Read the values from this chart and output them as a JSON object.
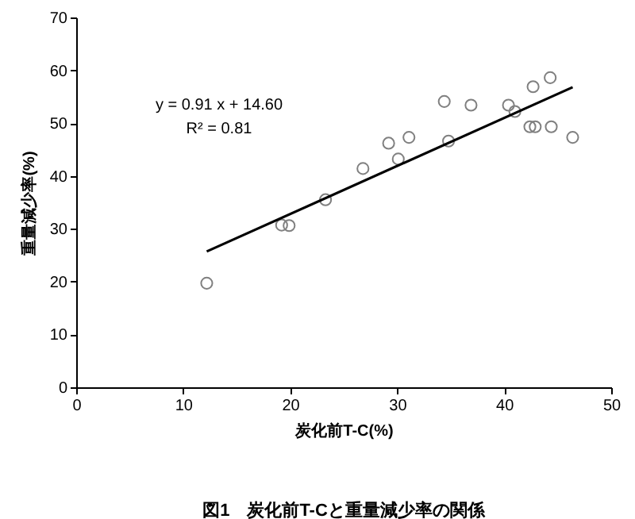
{
  "chart_data": {
    "type": "scatter",
    "title": "図1　炭化前T-Cと重量減少率の関係",
    "xlabel": "炭化前T-C(%)",
    "ylabel": "重量減少率(%)",
    "annotations": [
      "y = 0.91 x + 14.60",
      "R² = 0.81"
    ],
    "xlim": [
      0,
      50
    ],
    "xticks": [
      0,
      10,
      20,
      30,
      40,
      50
    ],
    "ylim": [
      0,
      70
    ],
    "yticks": [
      0,
      10,
      20,
      30,
      40,
      50,
      60,
      70
    ],
    "grid": false,
    "series": [
      {
        "marker": "circle",
        "color": "#808080",
        "x": [
          12.2,
          19.2,
          19.9,
          23.3,
          26.8,
          29.2,
          30.1,
          31.1,
          34.4,
          34.8,
          36.9,
          40.4,
          41.0,
          42.4,
          42.9,
          42.7,
          44.3,
          44.4,
          46.4
        ],
        "values": [
          19.7,
          30.7,
          30.6,
          35.5,
          41.4,
          46.2,
          43.2,
          47.3,
          54.1,
          46.6,
          53.4,
          53.4,
          52.2,
          49.3,
          49.3,
          56.9,
          58.6,
          49.3,
          47.3
        ]
      },
      {
        "type": "line",
        "marker": "none",
        "line_style": "solid",
        "color": "#000000",
        "x": [
          12.2,
          46.4
        ],
        "values": [
          25.7,
          56.8
        ]
      }
    ]
  }
}
